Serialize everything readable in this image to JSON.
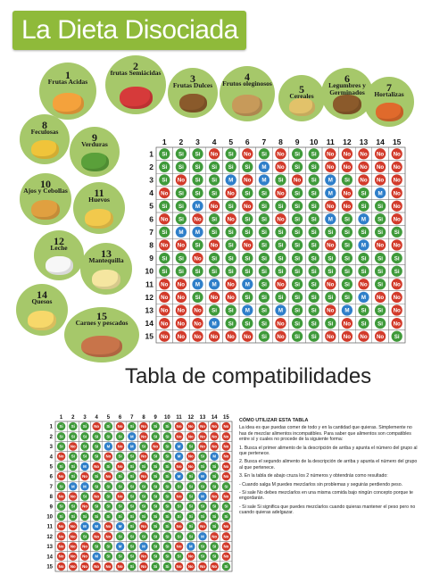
{
  "header": {
    "title": "La Dieta Disociada",
    "banner_color": "#8fba3a"
  },
  "groups": [
    {
      "num": "1",
      "label": "Frutas Acidas",
      "icon": "citrus-icon"
    },
    {
      "num": "2",
      "label": "frutas Semiácidas",
      "icon": "berries-icon"
    },
    {
      "num": "3",
      "label": "Frutas Dulces",
      "icon": "dates-icon"
    },
    {
      "num": "4",
      "label": "Frutos oleginosos",
      "icon": "nuts-icon"
    },
    {
      "num": "5",
      "label": "Cereales",
      "icon": "wheat-icon"
    },
    {
      "num": "6",
      "label": "Legumbres y Germinados",
      "icon": "legumes-icon"
    },
    {
      "num": "7",
      "label": "Hortalizas",
      "icon": "vegetables-icon"
    },
    {
      "num": "8",
      "label": "Feculosas",
      "icon": "potato-icon"
    },
    {
      "num": "9",
      "label": "Verduras",
      "icon": "greens-icon"
    },
    {
      "num": "10",
      "label": "Ajos y Cebollas",
      "icon": "onion-icon"
    },
    {
      "num": "11",
      "label": "Huevos",
      "icon": "egg-icon"
    },
    {
      "num": "12",
      "label": "Leche",
      "icon": "milk-icon"
    },
    {
      "num": "13",
      "label": "Mantequilla",
      "icon": "butter-icon"
    },
    {
      "num": "14",
      "label": "Quesos",
      "icon": "cheese-icon"
    },
    {
      "num": "15",
      "label": "Carnes y pescados",
      "icon": "meat-fish-icon"
    }
  ],
  "table": {
    "col_numbers": [
      "1",
      "2",
      "3",
      "4",
      "5",
      "6",
      "7",
      "8",
      "9",
      "10",
      "11",
      "12",
      "13",
      "14",
      "15"
    ],
    "row_numbers": [
      "1",
      "2",
      "3",
      "4",
      "5",
      "6",
      "7",
      "8",
      "9",
      "10",
      "11",
      "12",
      "13",
      "14",
      "15"
    ],
    "cell_labels": {
      "S": "Si",
      "N": "No",
      "M": "M"
    },
    "cell_colors": {
      "S": "#3f9a3a",
      "N": "#d23a2a",
      "M": "#2f7fc9"
    },
    "rows": [
      "SSSNSNSNSSNNNNN",
      "SSSSSSMNSSNNNNN",
      "SNSSMNMSNSMSNNN",
      "NSSSNSSNSSMNSMN",
      "SSMNSNSSSSNNSSN",
      "NSNSNSSNSSMSMSN",
      "SMMSSSSSSSSSSSS",
      "NNSNSNSSSSNSMNN",
      "SSNSSSSSSSSSSSS",
      "SSSSSSSSSSSSSSS",
      "NNMMNMSNSSNSNSN",
      "NNSNNSSSSSSSMNN",
      "NNNSSMSMSSNMSSN",
      "NNNMSSSNSSSNSSN",
      "NNNNNNSNSSNNNNS"
    ]
  },
  "subtitle": "Tabla de compatibilidades",
  "instructions": {
    "heading": "CÓMO UTILIZAR ESTA TABLA",
    "intro": "La idea es que puedas comer de todo y en la cantidad que quieras. Simplemente no has de mezclar alimentos incompatibles. Para saber que alimentos son compatibles entre sí y cuales no procede de la siguiente forma:",
    "step1": "1. Busca el primer alimento de la descripción de arriba y apunta el número del grupo al que pertenece.",
    "step2": "2. Busca el segundo alimento de la descripción de arriba y apunta el número del grupo al que pertenece.",
    "step3": "3. En la tabla de abajo cruza los 2 números y obtendrás como resultado:",
    "case_m": "- Cuando salga M puedes mezclarlos sin problemas y seguirás perdiendo peso.",
    "case_si": "- Si sale No debes mezclarlos en una misma comida bajo ningún concepto porque te engordarán.",
    "case_no": "- Si sale Si significa que puedes mezclarlos cuando quieras mantener el peso pero no cuando quieras adelgazar."
  }
}
